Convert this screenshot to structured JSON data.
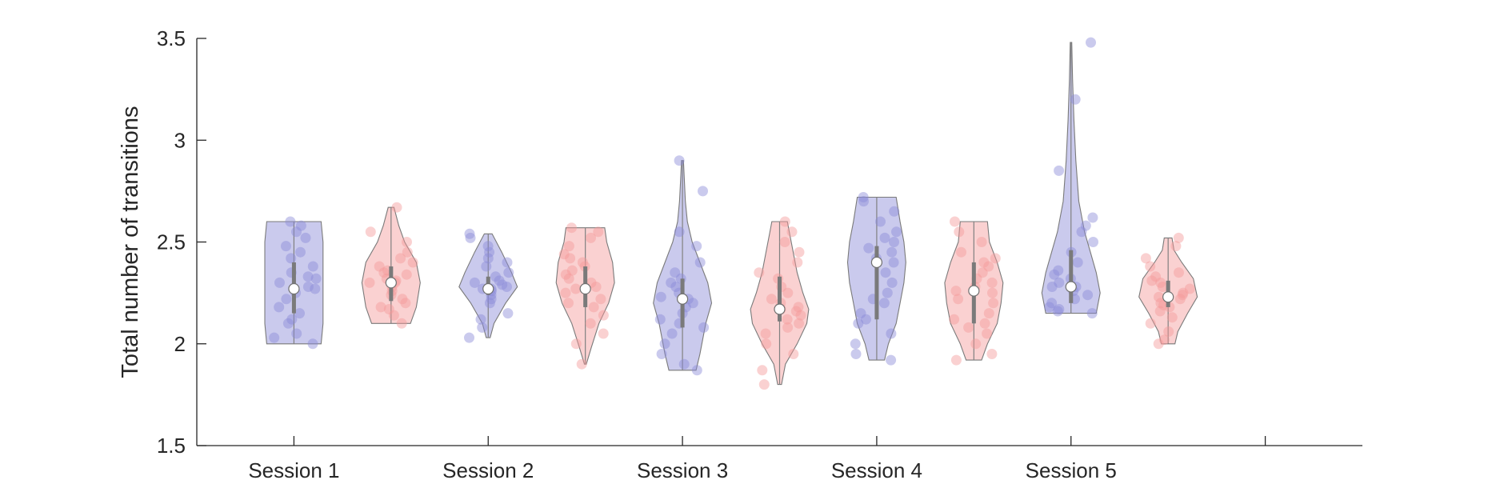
{
  "chart_data": {
    "type": "violin",
    "title": "",
    "ylabel": "Total number of transitions",
    "ylim": [
      1.5,
      3.5
    ],
    "yticks": [
      1.5,
      2,
      2.5,
      3,
      3.5
    ],
    "x_positions": [
      1,
      2,
      3,
      4,
      5,
      6
    ],
    "xlim": [
      0.5,
      6.5
    ],
    "categories": [
      "Session 1",
      "Session 2",
      "Session 3",
      "Session 4",
      "Session 5",
      ""
    ],
    "grid": false,
    "legend": "none",
    "colors": {
      "group_a": "#8a8ad8",
      "group_b": "#f39a9a",
      "outline": "#7a7a7a",
      "axis": "#262626"
    },
    "violins": [
      {
        "session": "Session 1",
        "group": "a",
        "x": 1.0,
        "min": 2.0,
        "max": 2.6,
        "q1": 2.15,
        "median": 2.27,
        "q3": 2.4,
        "profile": [
          [
            2.0,
            0.14
          ],
          [
            2.1,
            0.15
          ],
          [
            2.2,
            0.15
          ],
          [
            2.3,
            0.15
          ],
          [
            2.4,
            0.15
          ],
          [
            2.5,
            0.15
          ],
          [
            2.6,
            0.14
          ]
        ],
        "points": [
          2.0,
          2.03,
          2.05,
          2.1,
          2.12,
          2.15,
          2.18,
          2.22,
          2.25,
          2.27,
          2.28,
          2.3,
          2.32,
          2.33,
          2.35,
          2.38,
          2.42,
          2.45,
          2.48,
          2.52,
          2.55,
          2.58,
          2.6
        ]
      },
      {
        "session": "Session 1",
        "group": "b",
        "x": 1.5,
        "min": 2.1,
        "max": 2.67,
        "q1": 2.21,
        "median": 2.3,
        "q3": 2.38,
        "profile": [
          [
            2.1,
            0.1
          ],
          [
            2.18,
            0.13
          ],
          [
            2.3,
            0.15
          ],
          [
            2.4,
            0.13
          ],
          [
            2.5,
            0.07
          ],
          [
            2.58,
            0.04
          ],
          [
            2.67,
            0.015
          ]
        ],
        "points": [
          2.1,
          2.14,
          2.17,
          2.18,
          2.2,
          2.22,
          2.24,
          2.26,
          2.28,
          2.3,
          2.3,
          2.31,
          2.32,
          2.34,
          2.35,
          2.36,
          2.38,
          2.4,
          2.42,
          2.45,
          2.5,
          2.55,
          2.67
        ]
      },
      {
        "session": "Session 2",
        "group": "a",
        "x": 2.0,
        "min": 2.03,
        "max": 2.54,
        "q1": 2.24,
        "median": 2.27,
        "q3": 2.33,
        "profile": [
          [
            2.03,
            0.01
          ],
          [
            2.1,
            0.03
          ],
          [
            2.2,
            0.09
          ],
          [
            2.28,
            0.15
          ],
          [
            2.35,
            0.12
          ],
          [
            2.45,
            0.07
          ],
          [
            2.54,
            0.02
          ]
        ],
        "points": [
          2.03,
          2.08,
          2.12,
          2.15,
          2.2,
          2.22,
          2.24,
          2.26,
          2.27,
          2.27,
          2.28,
          2.29,
          2.3,
          2.31,
          2.33,
          2.35,
          2.38,
          2.4,
          2.42,
          2.45,
          2.48,
          2.52,
          2.54
        ]
      },
      {
        "session": "Session 2",
        "group": "b",
        "x": 2.5,
        "min": 1.9,
        "max": 2.57,
        "q1": 2.18,
        "median": 2.27,
        "q3": 2.38,
        "profile": [
          [
            1.9,
            0.005
          ],
          [
            1.98,
            0.03
          ],
          [
            2.1,
            0.07
          ],
          [
            2.2,
            0.12
          ],
          [
            2.3,
            0.15
          ],
          [
            2.4,
            0.14
          ],
          [
            2.5,
            0.11
          ],
          [
            2.57,
            0.1
          ]
        ],
        "points": [
          1.9,
          2.0,
          2.05,
          2.1,
          2.14,
          2.18,
          2.2,
          2.22,
          2.25,
          2.27,
          2.28,
          2.3,
          2.32,
          2.34,
          2.36,
          2.38,
          2.4,
          2.42,
          2.44,
          2.48,
          2.52,
          2.55,
          2.57
        ]
      },
      {
        "session": "Session 3",
        "group": "a",
        "x": 3.0,
        "min": 1.87,
        "max": 2.9,
        "q1": 2.08,
        "median": 2.22,
        "q3": 2.32,
        "profile": [
          [
            1.87,
            0.07
          ],
          [
            1.95,
            0.09
          ],
          [
            2.1,
            0.12
          ],
          [
            2.2,
            0.15
          ],
          [
            2.3,
            0.13
          ],
          [
            2.4,
            0.09
          ],
          [
            2.5,
            0.05
          ],
          [
            2.6,
            0.025
          ],
          [
            2.7,
            0.015
          ],
          [
            2.8,
            0.01
          ],
          [
            2.9,
            0.005
          ]
        ],
        "points": [
          1.87,
          1.9,
          1.95,
          2.0,
          2.05,
          2.08,
          2.1,
          2.12,
          2.15,
          2.18,
          2.2,
          2.22,
          2.23,
          2.25,
          2.28,
          2.3,
          2.32,
          2.35,
          2.4,
          2.48,
          2.55,
          2.75,
          2.9
        ]
      },
      {
        "session": "Session 3",
        "group": "b",
        "x": 3.5,
        "min": 1.8,
        "max": 2.6,
        "q1": 2.11,
        "median": 2.17,
        "q3": 2.33,
        "profile": [
          [
            1.8,
            0.01
          ],
          [
            1.9,
            0.03
          ],
          [
            2.0,
            0.09
          ],
          [
            2.1,
            0.14
          ],
          [
            2.17,
            0.15
          ],
          [
            2.25,
            0.12
          ],
          [
            2.35,
            0.09
          ],
          [
            2.45,
            0.07
          ],
          [
            2.55,
            0.05
          ],
          [
            2.6,
            0.04
          ]
        ],
        "points": [
          1.8,
          1.87,
          1.95,
          2.0,
          2.05,
          2.08,
          2.1,
          2.12,
          2.14,
          2.16,
          2.17,
          2.18,
          2.2,
          2.22,
          2.25,
          2.28,
          2.32,
          2.35,
          2.4,
          2.45,
          2.5,
          2.55,
          2.6
        ]
      },
      {
        "session": "Session 4",
        "group": "a",
        "x": 4.0,
        "min": 1.92,
        "max": 2.72,
        "q1": 2.12,
        "median": 2.4,
        "q3": 2.48,
        "profile": [
          [
            1.92,
            0.04
          ],
          [
            2.0,
            0.06
          ],
          [
            2.1,
            0.1
          ],
          [
            2.2,
            0.12
          ],
          [
            2.3,
            0.14
          ],
          [
            2.4,
            0.15
          ],
          [
            2.5,
            0.14
          ],
          [
            2.6,
            0.12
          ],
          [
            2.72,
            0.1
          ]
        ],
        "points": [
          1.92,
          1.95,
          2.0,
          2.05,
          2.1,
          2.12,
          2.15,
          2.2,
          2.22,
          2.25,
          2.3,
          2.35,
          2.4,
          2.42,
          2.45,
          2.47,
          2.5,
          2.52,
          2.55,
          2.6,
          2.65,
          2.7,
          2.72
        ]
      },
      {
        "session": "Session 4",
        "group": "b",
        "x": 4.5,
        "min": 1.92,
        "max": 2.6,
        "q1": 2.1,
        "median": 2.26,
        "q3": 2.4,
        "profile": [
          [
            1.92,
            0.04
          ],
          [
            2.0,
            0.07
          ],
          [
            2.1,
            0.12
          ],
          [
            2.2,
            0.14
          ],
          [
            2.3,
            0.15
          ],
          [
            2.4,
            0.12
          ],
          [
            2.5,
            0.08
          ],
          [
            2.6,
            0.07
          ]
        ],
        "points": [
          1.92,
          1.95,
          2.0,
          2.05,
          2.08,
          2.1,
          2.12,
          2.15,
          2.2,
          2.22,
          2.25,
          2.26,
          2.28,
          2.3,
          2.32,
          2.35,
          2.38,
          2.4,
          2.42,
          2.45,
          2.5,
          2.55,
          2.6
        ]
      },
      {
        "session": "Session 5",
        "group": "a",
        "x": 5.0,
        "min": 2.15,
        "max": 3.48,
        "q1": 2.2,
        "median": 2.28,
        "q3": 2.46,
        "profile": [
          [
            2.15,
            0.13
          ],
          [
            2.25,
            0.15
          ],
          [
            2.35,
            0.13
          ],
          [
            2.45,
            0.1
          ],
          [
            2.55,
            0.07
          ],
          [
            2.7,
            0.04
          ],
          [
            2.9,
            0.025
          ],
          [
            3.1,
            0.015
          ],
          [
            3.3,
            0.008
          ],
          [
            3.48,
            0.004
          ]
        ],
        "points": [
          2.15,
          2.16,
          2.17,
          2.18,
          2.2,
          2.22,
          2.24,
          2.26,
          2.28,
          2.28,
          2.3,
          2.32,
          2.34,
          2.36,
          2.4,
          2.45,
          2.5,
          2.55,
          2.58,
          2.62,
          2.85,
          3.2,
          3.48
        ]
      },
      {
        "session": "Session 5",
        "group": "b",
        "x": 5.5,
        "min": 2.0,
        "max": 2.52,
        "q1": 2.18,
        "median": 2.23,
        "q3": 2.31,
        "profile": [
          [
            2.0,
            0.035
          ],
          [
            2.06,
            0.05
          ],
          [
            2.15,
            0.1
          ],
          [
            2.23,
            0.15
          ],
          [
            2.32,
            0.13
          ],
          [
            2.4,
            0.07
          ],
          [
            2.46,
            0.03
          ],
          [
            2.52,
            0.02
          ]
        ],
        "points": [
          2.0,
          2.02,
          2.06,
          2.1,
          2.13,
          2.16,
          2.18,
          2.19,
          2.2,
          2.22,
          2.23,
          2.24,
          2.25,
          2.27,
          2.28,
          2.3,
          2.31,
          2.33,
          2.35,
          2.38,
          2.42,
          2.48,
          2.52
        ]
      }
    ]
  }
}
